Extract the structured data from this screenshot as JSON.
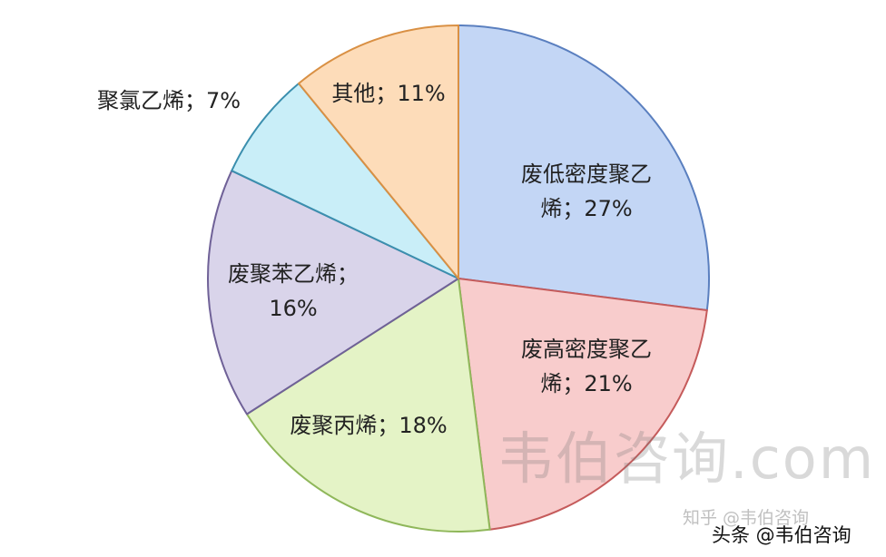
{
  "chart_data": {
    "type": "pie",
    "slices": [
      {
        "label": [
          "废低密度聚乙",
          "烯；27%"
        ],
        "name": "废低密度聚乙烯",
        "value": 27,
        "fill": "#c3d6f5",
        "stroke": "#5a7fbf"
      },
      {
        "label": [
          "废高密度聚乙",
          "烯；21%"
        ],
        "name": "废高密度聚乙烯",
        "value": 21,
        "fill": "#f8cccc",
        "stroke": "#c55b5b"
      },
      {
        "label": [
          "废聚丙烯；18%"
        ],
        "name": "废聚丙烯",
        "value": 18,
        "fill": "#e4f3c6",
        "stroke": "#8fb75a"
      },
      {
        "label": [
          "废聚苯乙烯；",
          "16%"
        ],
        "name": "废聚苯乙烯",
        "value": 16,
        "fill": "#d9d4ea",
        "stroke": "#6f6197"
      },
      {
        "label": [
          "聚氯乙烯；7%"
        ],
        "name": "聚氯乙烯",
        "value": 7,
        "fill": "#c9eef8",
        "stroke": "#3b8fae"
      },
      {
        "label": [
          "其他；11%"
        ],
        "name": "其他",
        "value": 11,
        "fill": "#fddcb9",
        "stroke": "#d99044"
      }
    ]
  },
  "watermarks": {
    "main": "韦伯咨询.com",
    "zhihu": "知乎 @韦伯咨询",
    "toutiao": "头条 @韦伯咨询"
  }
}
